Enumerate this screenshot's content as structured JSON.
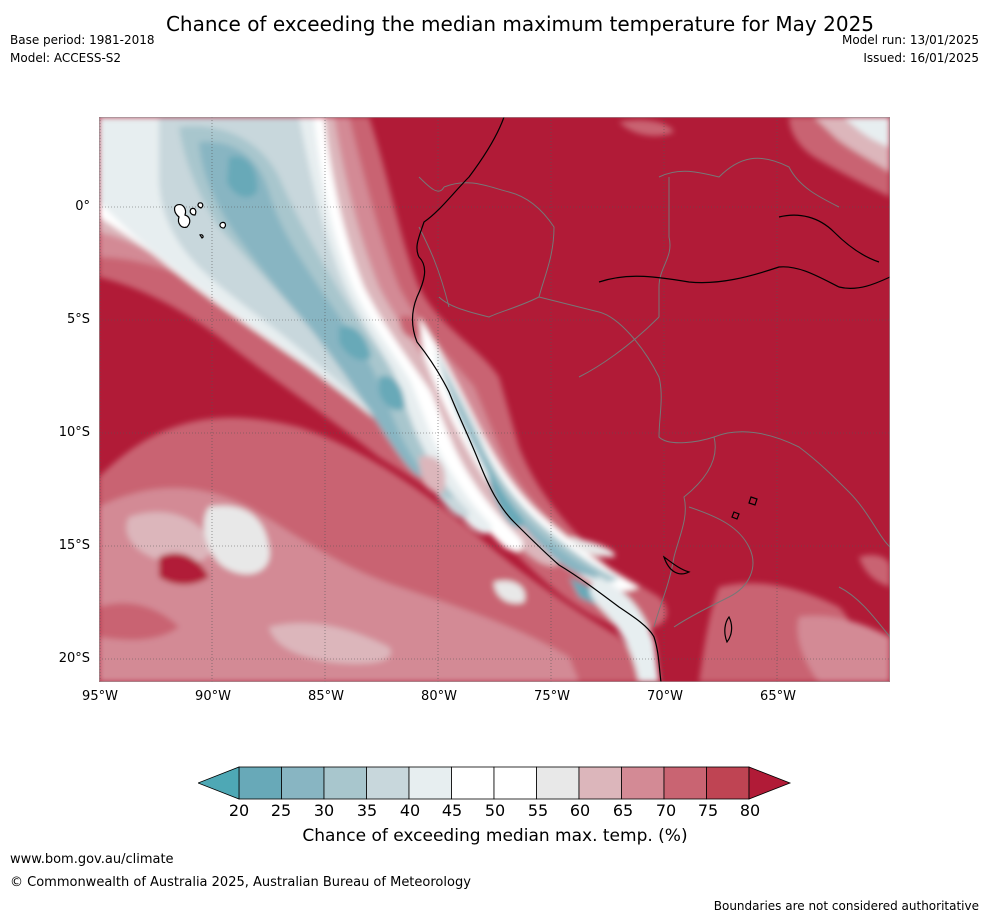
{
  "title": "Chance of exceeding the median maximum temperature for May 2025",
  "meta_left": [
    "Base period: 1981-2018",
    "Model: ACCESS-S2"
  ],
  "meta_right": [
    "Model run: 13/01/2025",
    "Issued: 16/01/2025"
  ],
  "map": {
    "lon_range": [
      -95,
      -60
    ],
    "lat_range": [
      -21,
      4
    ],
    "lat_ticks": [
      "0°",
      "5°S",
      "10°S",
      "15°S",
      "20°S"
    ],
    "lon_ticks": [
      "95°W",
      "90°W",
      "85°W",
      "80°W",
      "75°W",
      "70°W",
      "65°W"
    ],
    "ocean_fill": "#b11b37"
  },
  "colorbar": {
    "title": "Chance of exceeding median max. temp. (%)",
    "ticks": [
      "20",
      "25",
      "30",
      "35",
      "40",
      "45",
      "50",
      "55",
      "60",
      "65",
      "70",
      "75",
      "80"
    ],
    "colors": [
      "#68a9b8",
      "#88b5c2",
      "#a8c6cd",
      "#c8d7dc",
      "#e7eef0",
      "#ffffff",
      "#ffffff",
      "#e8e8e8",
      "#dcb6bb",
      "#d38a95",
      "#c96472",
      "#bf4453"
    ],
    "under_color": "#4ea8b5",
    "over_color": "#b11b37"
  },
  "footer": {
    "url": "www.bom.gov.au/climate",
    "copyright": "© Commonwealth of Australia 2025, Australian Bureau of Meteorology",
    "note": "Boundaries are not considered authoritative"
  }
}
